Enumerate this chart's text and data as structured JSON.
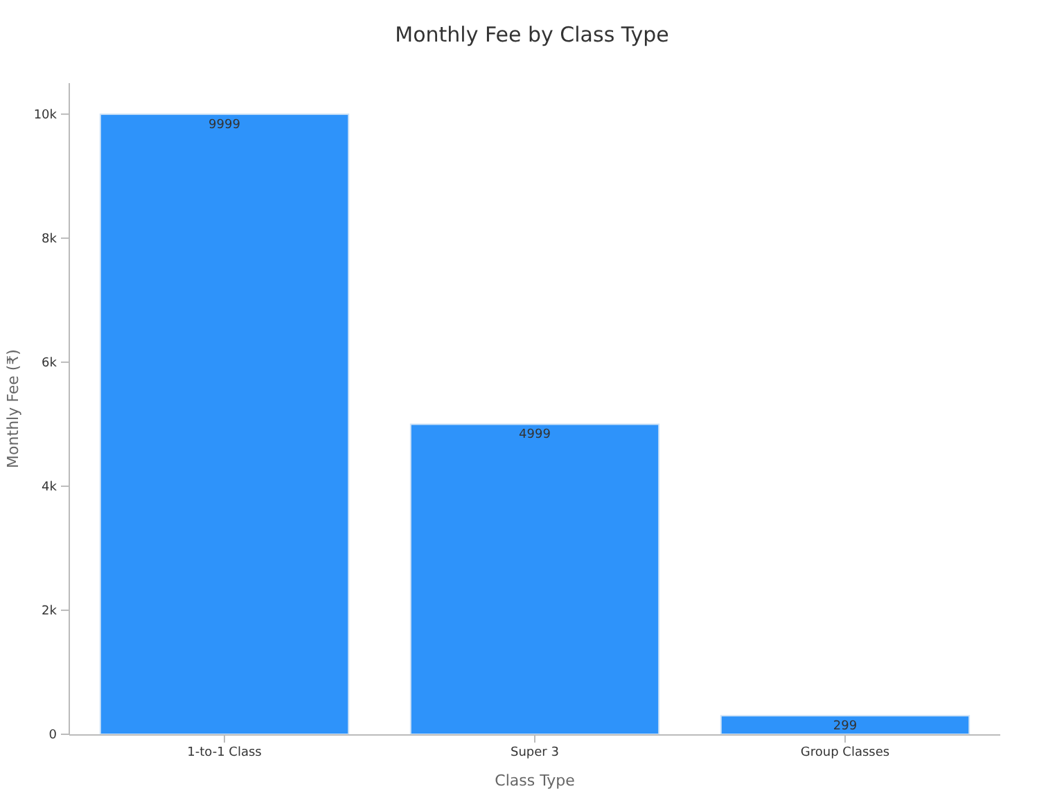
{
  "chart_data": {
    "type": "bar",
    "title": "Monthly Fee by Class Type",
    "xlabel": "Class Type",
    "ylabel": "Monthly Fee (₹)",
    "categories": [
      "1-to-1 Class",
      "Super 3",
      "Group Classes"
    ],
    "values": [
      9999,
      4999,
      299
    ],
    "color": "#2e93fa",
    "ylim": [
      0,
      10500
    ],
    "yticks": [
      {
        "value": 0,
        "label": "0"
      },
      {
        "value": 2000,
        "label": "2k"
      },
      {
        "value": 4000,
        "label": "4k"
      },
      {
        "value": 6000,
        "label": "6k"
      },
      {
        "value": 8000,
        "label": "8k"
      },
      {
        "value": 10000,
        "label": "10k"
      }
    ],
    "data_labels": true
  }
}
